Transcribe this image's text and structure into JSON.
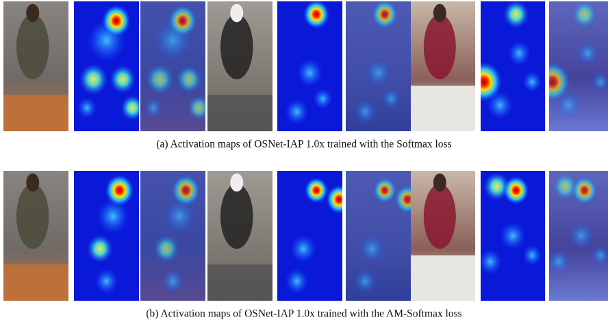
{
  "figure": {
    "captions": [
      "(a) Activation maps of OSNet-IAP 1.0x trained with the Softmax loss",
      "(b) Activation maps of OSNet-IAP 1.0x trained with the AM-Softmax loss"
    ]
  }
}
